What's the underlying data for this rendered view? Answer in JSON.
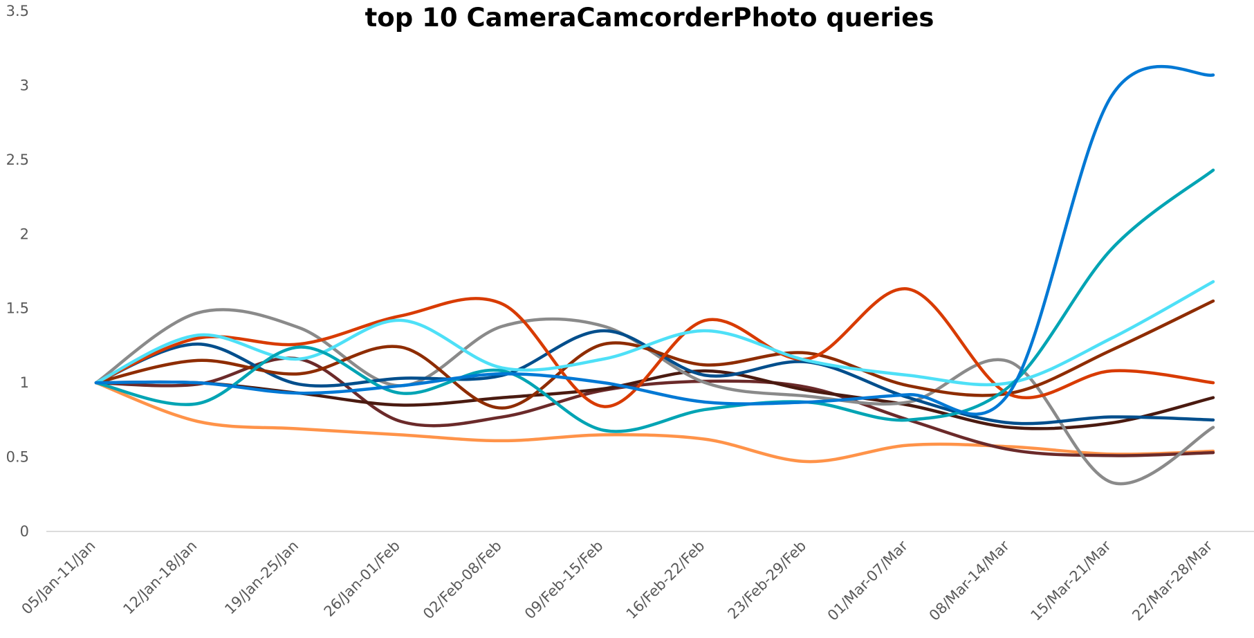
{
  "chart_data": {
    "type": "line",
    "title": "top 10 CameraCamcorderPhoto queries",
    "categories": [
      "05/Jan-11/Jan",
      "12/Jan-18/Jan",
      "19/Jan-25/Jan",
      "26/Jan-01/Feb",
      "02/Feb-08/Feb",
      "09/Feb-15/Feb",
      "16/Feb-22/Feb",
      "23/Feb-29/Feb",
      "01/Mar-07/Mar",
      "08/Mar-14/Mar",
      "15/Mar-21/Mar",
      "22/Mar-28/Mar"
    ],
    "ylim": [
      0,
      3.5
    ],
    "yticks": [
      0,
      0.5,
      1,
      1.5,
      2,
      2.5,
      3,
      3.5
    ],
    "smooth": true,
    "series": [
      {
        "color": "#ff9349",
        "values": [
          1,
          0.74,
          0.69,
          0.65,
          0.61,
          0.65,
          0.62,
          0.47,
          0.58,
          0.57,
          0.52,
          0.54
        ]
      },
      {
        "color": "#6b2a2a",
        "values": [
          1,
          0.99,
          1.16,
          0.74,
          0.77,
          0.95,
          1.01,
          0.97,
          0.75,
          0.55,
          0.51,
          0.53
        ]
      },
      {
        "color": "#4a1a10",
        "values": [
          1,
          1.0,
          0.93,
          0.85,
          0.9,
          0.96,
          1.08,
          0.95,
          0.85,
          0.7,
          0.73,
          0.9
        ]
      },
      {
        "color": "#8a8a8a",
        "values": [
          1,
          1.47,
          1.37,
          0.98,
          1.38,
          1.38,
          1.0,
          0.91,
          0.87,
          1.14,
          0.33,
          0.7
        ]
      },
      {
        "color": "#004e8c",
        "values": [
          1,
          1.26,
          0.99,
          1.03,
          1.05,
          1.35,
          1.05,
          1.14,
          0.9,
          0.73,
          0.77,
          0.75
        ]
      },
      {
        "color": "#8e2c00",
        "values": [
          1,
          1.15,
          1.06,
          1.24,
          0.83,
          1.26,
          1.12,
          1.2,
          0.98,
          0.93,
          1.22,
          1.55
        ]
      },
      {
        "color": "#d83b01",
        "values": [
          1,
          1.3,
          1.26,
          1.45,
          1.53,
          0.84,
          1.42,
          1.16,
          1.63,
          0.92,
          1.08,
          1.0
        ]
      },
      {
        "color": "#4ee0f7",
        "values": [
          1,
          1.32,
          1.16,
          1.42,
          1.1,
          1.16,
          1.35,
          1.15,
          1.05,
          1.0,
          1.3,
          1.68
        ]
      },
      {
        "color": "#00a4b4",
        "values": [
          1,
          0.86,
          1.24,
          0.93,
          1.08,
          0.68,
          0.82,
          0.87,
          0.75,
          0.98,
          1.9,
          2.43
        ]
      },
      {
        "color": "#0078d4",
        "values": [
          1,
          1.0,
          0.93,
          0.98,
          1.06,
          1.0,
          0.87,
          0.87,
          0.92,
          0.94,
          2.93,
          3.07
        ]
      }
    ]
  }
}
